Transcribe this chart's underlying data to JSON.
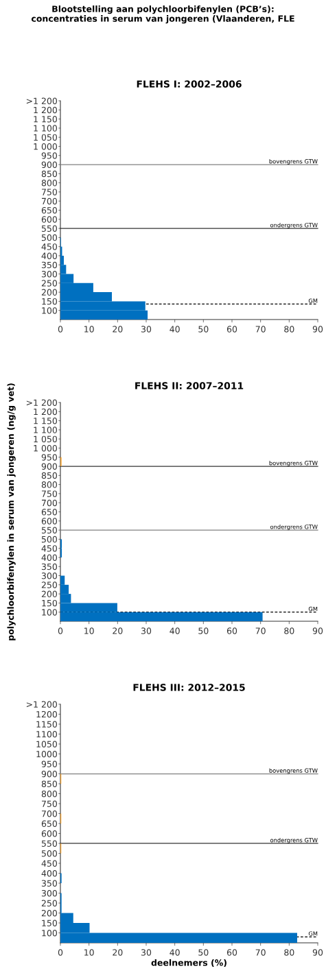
{
  "chart_data": [
    {
      "type": "histogram",
      "orientation": "horizontal",
      "title": "FLEHS I: 2002–2006",
      "annotations": [
        "Blootstelling aan polychloorbifenylen (PCB’s):\nconcentraties in serum van jongeren (Vlaanderen, FLE"
      ],
      "bins": [
        50,
        100,
        150,
        200,
        250,
        300,
        350,
        400,
        450,
        500,
        550,
        600,
        650,
        700,
        750,
        800,
        850,
        900,
        950,
        1000,
        1050,
        1100,
        1150,
        1200,
        1250
      ],
      "values": [
        30.5,
        29.7,
        18,
        11.5,
        4.6,
        2,
        1.2,
        0.6,
        0.2,
        0,
        0,
        0,
        0,
        0,
        0,
        0,
        0,
        0,
        0,
        0,
        0,
        0,
        0,
        0
      ],
      "color": "#0070c0",
      "xlim": [
        0,
        90
      ],
      "xticks": [
        0,
        10,
        20,
        30,
        40,
        50,
        60,
        70,
        80,
        90
      ],
      "ylim": [
        50,
        1250
      ],
      "yticks": [
        100,
        150,
        200,
        250,
        300,
        350,
        400,
        450,
        500,
        550,
        600,
        650,
        700,
        750,
        800,
        850,
        900,
        950,
        {
          "value": 1000,
          "label": "1 000"
        },
        {
          "value": 1050,
          "label": "1 050"
        },
        {
          "value": 1100,
          "label": "1 100"
        },
        {
          "value": 1150,
          "label": "1 150"
        },
        {
          "value": 1200,
          "label": "1 200"
        },
        {
          "value": 1250,
          "label": ">1 200"
        }
      ],
      "ref_lines": [
        {
          "axis": "y",
          "value": 900,
          "label": "bovengrens GTW",
          "color": "#808080",
          "line_style": "solid"
        },
        {
          "axis": "y",
          "value": 550,
          "label": "ondergrens GTW",
          "color": "#333333",
          "line_style": "solid"
        },
        {
          "axis": "y",
          "value": 135,
          "label": "GM",
          "color": "#000000",
          "line_style": "dashed"
        }
      ],
      "grid": false,
      "legend": false
    },
    {
      "type": "histogram",
      "orientation": "horizontal",
      "title": "FLEHS II: 2007–2011",
      "ylabel": "polychloorbifenylen in serum van jongeren (ng/g vet)",
      "bins": [
        50,
        100,
        150,
        200,
        250,
        300,
        350,
        400,
        450,
        500,
        550,
        600,
        650,
        700,
        750,
        800,
        850,
        900,
        950,
        1000,
        1050,
        1100,
        1150,
        1200,
        1250
      ],
      "values": [
        70.7,
        19.9,
        3.7,
        2.9,
        1.5,
        0,
        0,
        0.5,
        0.5,
        0,
        0,
        0,
        0,
        0,
        0,
        0,
        0,
        0.4,
        0,
        0,
        0,
        0,
        0,
        0
      ],
      "colors": [
        "#0070c0",
        "#0070c0",
        "#0070c0",
        "#0070c0",
        "#0070c0",
        "#0070c0",
        "#0070c0",
        "#0070c0",
        "#0070c0",
        "#0070c0",
        "#0070c0",
        "#0070c0",
        "#0070c0",
        "#0070c0",
        "#0070c0",
        "#0070c0",
        "#0070c0",
        "#f0a030",
        "#0070c0",
        "#0070c0",
        "#0070c0",
        "#0070c0",
        "#0070c0",
        "#0070c0"
      ],
      "xlim": [
        0,
        90
      ],
      "xticks": [
        0,
        10,
        20,
        30,
        40,
        50,
        60,
        70,
        80,
        90
      ],
      "ylim": [
        50,
        1250
      ],
      "yticks": [
        100,
        150,
        200,
        250,
        300,
        350,
        400,
        450,
        500,
        550,
        600,
        650,
        700,
        750,
        800,
        850,
        900,
        950,
        {
          "value": 1000,
          "label": "1 000"
        },
        {
          "value": 1050,
          "label": "1 050"
        },
        {
          "value": 1100,
          "label": "1 100"
        },
        {
          "value": 1150,
          "label": "1 150"
        },
        {
          "value": 1200,
          "label": "1 200"
        },
        {
          "value": 1250,
          "label": ">1 200"
        }
      ],
      "ref_lines": [
        {
          "axis": "y",
          "value": 900,
          "label": "bovengrens GTW",
          "color": "#333333",
          "line_style": "solid"
        },
        {
          "axis": "y",
          "value": 550,
          "label": "ondergrens GTW",
          "color": "#808080",
          "line_style": "solid"
        },
        {
          "axis": "y",
          "value": 100,
          "label": "GM",
          "color": "#000000",
          "line_style": "dashed"
        }
      ],
      "grid": false,
      "legend": false
    },
    {
      "type": "histogram",
      "orientation": "horizontal",
      "title": "FLEHS III: 2012–2015",
      "xlabel": "deelnemers (%)",
      "bins": [
        50,
        100,
        150,
        200,
        250,
        300,
        350,
        400,
        450,
        500,
        550,
        600,
        650,
        700,
        750,
        800,
        850,
        900,
        950,
        1000,
        1050,
        1100,
        1150,
        1200,
        1250
      ],
      "values": [
        82.8,
        10.2,
        4.5,
        0.4,
        0.4,
        0,
        0.4,
        0,
        0,
        0.3,
        0,
        0,
        0.3,
        0,
        0,
        0,
        0.3,
        0,
        0,
        0,
        0,
        0,
        0,
        0
      ],
      "colors": [
        "#0070c0",
        "#0070c0",
        "#0070c0",
        "#0070c0",
        "#0070c0",
        "#0070c0",
        "#0070c0",
        "#0070c0",
        "#0070c0",
        "#f0a030",
        "#0070c0",
        "#0070c0",
        "#f0a030",
        "#0070c0",
        "#0070c0",
        "#0070c0",
        "#f0a030",
        "#0070c0",
        "#0070c0",
        "#0070c0",
        "#0070c0",
        "#0070c0",
        "#0070c0",
        "#0070c0"
      ],
      "xlim": [
        0,
        90
      ],
      "xticks": [
        0,
        10,
        20,
        30,
        40,
        50,
        60,
        70,
        80,
        90
      ],
      "ylim": [
        50,
        1250
      ],
      "yticks": [
        100,
        150,
        200,
        250,
        300,
        350,
        400,
        450,
        500,
        550,
        600,
        650,
        700,
        750,
        800,
        850,
        900,
        950,
        1000,
        1050,
        1100,
        1150,
        1200,
        {
          "value": 1250,
          "label": ">1 200"
        }
      ],
      "ref_lines": [
        {
          "axis": "y",
          "value": 900,
          "label": "bovengrens GTW",
          "color": "#808080",
          "line_style": "solid"
        },
        {
          "axis": "y",
          "value": 550,
          "label": "ondergrens GTW",
          "color": "#333333",
          "line_style": "solid"
        },
        {
          "axis": "y",
          "value": 80,
          "label": "GM",
          "color": "#000000",
          "line_style": "dashed"
        }
      ],
      "grid": false,
      "legend": false
    }
  ]
}
